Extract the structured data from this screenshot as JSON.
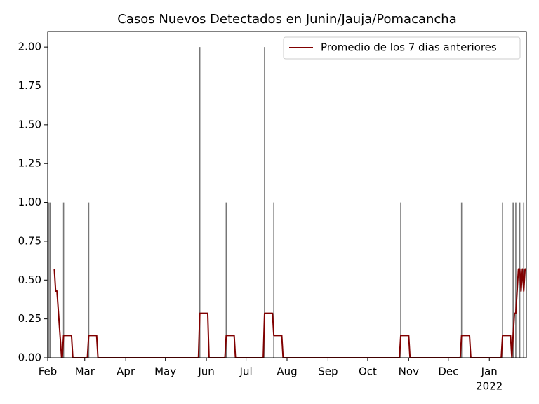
{
  "chart_data": {
    "type": "combo",
    "title": "Casos Nuevos Detectados en Junin/Jauja/Pomacancha",
    "xlim": [
      0,
      362
    ],
    "xticks": [
      {
        "value": 0,
        "label": "Feb"
      },
      {
        "value": 28,
        "label": "Mar"
      },
      {
        "value": 59,
        "label": "Apr"
      },
      {
        "value": 89,
        "label": "May"
      },
      {
        "value": 120,
        "label": "Jun"
      },
      {
        "value": 150,
        "label": "Jul"
      },
      {
        "value": 181,
        "label": "Aug"
      },
      {
        "value": 212,
        "label": "Sep"
      },
      {
        "value": 242,
        "label": "Oct"
      },
      {
        "value": 273,
        "label": "Nov"
      },
      {
        "value": 303,
        "label": "Dec"
      },
      {
        "value": 334,
        "label": "Jan"
      }
    ],
    "x_year_label": "2022",
    "ylim": [
      0,
      2.1
    ],
    "yticks": [
      {
        "value": 0,
        "label": "0.00"
      },
      {
        "value": 0.25,
        "label": "0.25"
      },
      {
        "value": 0.5,
        "label": "0.50"
      },
      {
        "value": 0.75,
        "label": "0.75"
      },
      {
        "value": 1,
        "label": "1.00"
      },
      {
        "value": 1.25,
        "label": "1.25"
      },
      {
        "value": 1.5,
        "label": "1.50"
      },
      {
        "value": 1.75,
        "label": "1.75"
      },
      {
        "value": 2,
        "label": "2.00"
      }
    ],
    "legend": "upper right",
    "bars": {
      "color": "#777777",
      "x": [
        0,
        1,
        2,
        12,
        31,
        115,
        135,
        164,
        171,
        267,
        313,
        344,
        352,
        354,
        357,
        360
      ],
      "values": [
        1,
        1,
        1,
        1,
        1,
        2,
        1,
        2,
        1,
        1,
        1,
        1,
        1,
        1,
        1,
        1
      ]
    },
    "series": [
      {
        "name": "Promedio de los 7 dias anteriores",
        "color": "#800000",
        "x": [
          5,
          6,
          7,
          10.5,
          11,
          12,
          18,
          19,
          30,
          31,
          37,
          38,
          114,
          115,
          121,
          122,
          134,
          135,
          141,
          142,
          163,
          164,
          170,
          171,
          177,
          178,
          266,
          267,
          273,
          274,
          312,
          313,
          319,
          320,
          343,
          344,
          350,
          351,
          352,
          353,
          354,
          356,
          357,
          358,
          359,
          360,
          361,
          362
        ],
        "values": [
          0.571,
          0.429,
          0.429,
          0,
          0,
          0.143,
          0.143,
          0,
          0,
          0.143,
          0.143,
          0,
          0,
          0.286,
          0.286,
          0,
          0,
          0.143,
          0.143,
          0,
          0,
          0.286,
          0.286,
          0.143,
          0.143,
          0,
          0,
          0.143,
          0.143,
          0,
          0,
          0.143,
          0.143,
          0,
          0,
          0.143,
          0.143,
          0,
          0.143,
          0.286,
          0.286,
          0.571,
          0.571,
          0.429,
          0.571,
          0.429,
          0.571,
          0.571
        ]
      }
    ]
  }
}
